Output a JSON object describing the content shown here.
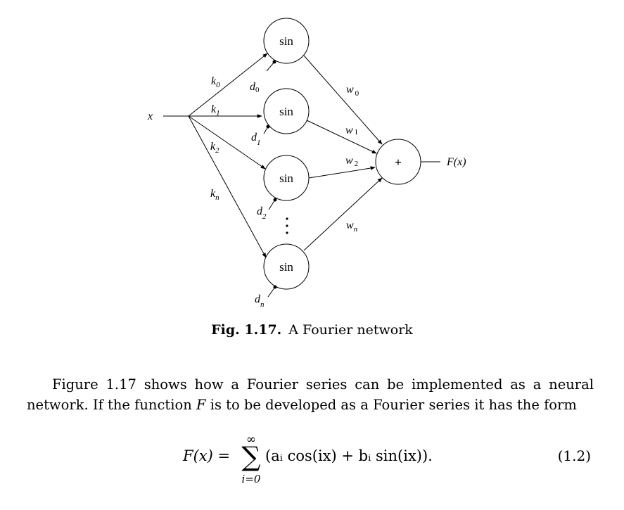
{
  "figure": {
    "input_label": "x",
    "node_label": "sin",
    "sum_label": "+",
    "output_label": "F(x)",
    "input_weights": [
      {
        "base": "k",
        "sub": "0"
      },
      {
        "base": "k",
        "sub": "1"
      },
      {
        "base": "k",
        "sub": "2"
      },
      {
        "base": "k",
        "sub": "n"
      }
    ],
    "biases": [
      {
        "base": "d",
        "sub": "0"
      },
      {
        "base": "d",
        "sub": "1"
      },
      {
        "base": "d",
        "sub": "2"
      },
      {
        "base": "d",
        "sub": "n"
      }
    ],
    "output_weights": [
      {
        "base": "w",
        "sub": "0"
      },
      {
        "base": "w",
        "sub": "1"
      },
      {
        "base": "w",
        "sub": "2"
      },
      {
        "base": "w",
        "sub": "n"
      }
    ],
    "ellipsis": "⋮"
  },
  "caption": {
    "number": "Fig. 1.17.",
    "text": "A Fourier network"
  },
  "paragraph": {
    "before_F": "Figure 1.17 shows how a Fourier series can be implemented as a neural network. If the function ",
    "F": "F",
    "after_F": " is to be developed as a Fourier series it has the form"
  },
  "equation": {
    "lhs": "F(x) =",
    "sum_upper": "∞",
    "sum_symbol": "∑",
    "sum_lower": "i=0",
    "body": "(aᵢ cos(ix) + bᵢ sin(ix)).",
    "number": "(1.2)"
  }
}
